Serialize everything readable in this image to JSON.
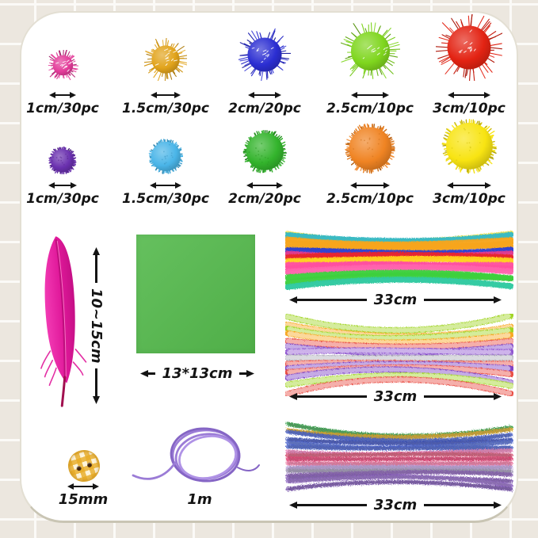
{
  "page": {
    "tile_color": "#ece7df",
    "grout_color": "#fbfaf7",
    "card_color": "#ffffff",
    "card_border": "#c9c5b4"
  },
  "pom_rows": [
    {
      "type": "glitter",
      "items": [
        {
          "label": "1cm/30pc",
          "color": "#e43c9a"
        },
        {
          "label": "1.5cm/30pc",
          "color": "#e2a41c"
        },
        {
          "label": "2cm/20pc",
          "color": "#2b2ed2"
        },
        {
          "label": "2.5cm/10pc",
          "color": "#7fd61e"
        },
        {
          "label": "3cm/10pc",
          "color": "#e32313"
        }
      ]
    },
    {
      "type": "plain",
      "items": [
        {
          "label": "1cm/30pc",
          "color": "#6a30af"
        },
        {
          "label": "1.5cm/30pc",
          "color": "#4ab5e8"
        },
        {
          "label": "2cm/20pc",
          "color": "#33b42c"
        },
        {
          "label": "2.5cm/10pc",
          "color": "#f08423"
        },
        {
          "label": "3cm/10pc",
          "color": "#f8e412"
        }
      ]
    }
  ],
  "feather": {
    "label": "10~15cm",
    "color": "#e0189a",
    "shaft_color": "#b70d78",
    "quill_color": "#a1104f"
  },
  "paper": {
    "label": "13*13cm",
    "color": "#54b94c"
  },
  "pipe_cleaners": [
    {
      "style": "solid",
      "label": "33cm",
      "colors": [
        "#f2e14a",
        "#35b9c6",
        "#f7a51b",
        "#f7a51b",
        "#f7a51b",
        "#2a3fd0",
        "#e23a8e",
        "#e8262c",
        "#ffd21e",
        "#ff4fa0",
        "#ff4fa0",
        "#ff63ad",
        "#3ecf3e",
        "#3ecf3e",
        "#2fc9a0"
      ]
    },
    {
      "style": "striped",
      "label": "33cm",
      "colors": [
        "#9ed41f",
        "#f7a51b",
        "#9ed41f",
        "#f7a51b",
        "#e8483f",
        "#7b3fc4",
        "#8d52d0",
        "#a9a9b5",
        "#e8483f",
        "#7b3fc4",
        "#e8483f",
        "#7b3fc4",
        "#9ed41f",
        "#e8483f"
      ]
    },
    {
      "style": "tinsel",
      "label": "33cm",
      "colors": [
        "#2f9e44",
        "#d4a017",
        "#3b55c4",
        "#2f46b8",
        "#4a63d0",
        "#3b55c4",
        "#e87bb8",
        "#d24b6e",
        "#e0356a",
        "#ee6f9e",
        "#b79bdc",
        "#9a8fb0",
        "#8055b0",
        "#7b4fb0",
        "#8a5fc0",
        "#6f48a8"
      ]
    }
  ],
  "button": {
    "label": "15mm",
    "color": "#e9b838"
  },
  "cord": {
    "label": "1m",
    "color": "#9b7cd6"
  }
}
